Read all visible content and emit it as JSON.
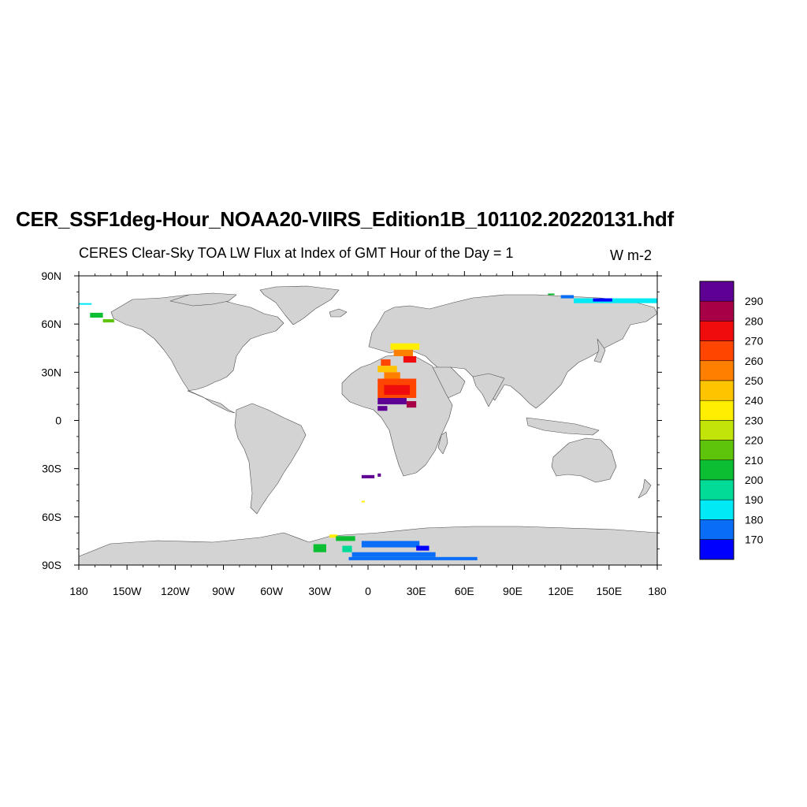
{
  "title": "CER_SSF1deg-Hour_NOAA20-VIIRS_Edition1B_101102.20220131.hdf",
  "subtitle": "CERES Clear-Sky TOA LW Flux at Index of GMT Hour of the Day = 1",
  "units": "W m-2",
  "map": {
    "projection": "cylindrical-equidistant",
    "lon_range": [
      -180,
      180
    ],
    "lat_range": [
      -90,
      90
    ],
    "land_color": "#d3d3d3",
    "ocean_color": "#ffffff",
    "lat_ticks": [
      {
        "value": 90,
        "label": "90N"
      },
      {
        "value": 60,
        "label": "60N"
      },
      {
        "value": 30,
        "label": "30N"
      },
      {
        "value": 0,
        "label": "0"
      },
      {
        "value": -30,
        "label": "30S"
      },
      {
        "value": -60,
        "label": "60S"
      },
      {
        "value": -90,
        "label": "90S"
      }
    ],
    "lon_ticks": [
      {
        "value": -180,
        "label": "180"
      },
      {
        "value": -150,
        "label": "150W"
      },
      {
        "value": -120,
        "label": "120W"
      },
      {
        "value": -90,
        "label": "90W"
      },
      {
        "value": -60,
        "label": "60W"
      },
      {
        "value": -30,
        "label": "30W"
      },
      {
        "value": 0,
        "label": "0"
      },
      {
        "value": 30,
        "label": "30E"
      },
      {
        "value": 60,
        "label": "60E"
      },
      {
        "value": 90,
        "label": "90E"
      },
      {
        "value": 120,
        "label": "120E"
      },
      {
        "value": 150,
        "label": "150E"
      },
      {
        "value": 180,
        "label": "180"
      }
    ]
  },
  "colorbar": {
    "colors": [
      "#0000ff",
      "#0a6df5",
      "#00e9f5",
      "#00dc98",
      "#0cbf32",
      "#5ec40b",
      "#c2e408",
      "#ffee00",
      "#ffc400",
      "#ff8000",
      "#ff4500",
      "#f00c0c",
      "#a70046",
      "#5e0094"
    ],
    "labels": [
      "170",
      "180",
      "190",
      "200",
      "210",
      "220",
      "230",
      "240",
      "250",
      "260",
      "270",
      "280",
      "290"
    ]
  },
  "chart_data": {
    "type": "heatmap",
    "variable": "Clear-Sky TOA LW Flux",
    "units": "W m-2",
    "cell_size_deg": 1,
    "levels": [
      170,
      180,
      190,
      200,
      210,
      220,
      230,
      240,
      250,
      260,
      270,
      280,
      290
    ],
    "patches": [
      {
        "lon": [
          -180,
          -172
        ],
        "lat": [
          72,
          73
        ],
        "value": 185
      },
      {
        "lon": [
          -173,
          -165
        ],
        "lat": [
          64,
          67
        ],
        "value": 205
      },
      {
        "lon": [
          -165,
          -158
        ],
        "lat": [
          61,
          63
        ],
        "value": 215
      },
      {
        "lon": [
          -16,
          -10
        ],
        "lat": [
          -82,
          -78
        ],
        "value": 195
      },
      {
        "lon": [
          -34,
          -26
        ],
        "lat": [
          -82,
          -77
        ],
        "value": 205
      },
      {
        "lon": [
          -24,
          -19
        ],
        "lat": [
          -73,
          -71
        ],
        "value": 235
      },
      {
        "lon": [
          -20,
          -8
        ],
        "lat": [
          -75,
          -72
        ],
        "value": 205
      },
      {
        "lon": [
          -4,
          32
        ],
        "lat": [
          -79,
          -75
        ],
        "value": 175
      },
      {
        "lon": [
          -12,
          68
        ],
        "lat": [
          -87,
          -85
        ],
        "value": 175
      },
      {
        "lon": [
          -10,
          42
        ],
        "lat": [
          -85,
          -82
        ],
        "value": 175
      },
      {
        "lon": [
          30,
          38
        ],
        "lat": [
          -81,
          -78
        ],
        "value": 165
      },
      {
        "lon": [
          120,
          128
        ],
        "lat": [
          76,
          78
        ],
        "value": 175
      },
      {
        "lon": [
          128,
          180
        ],
        "lat": [
          73,
          76
        ],
        "value": 185
      },
      {
        "lon": [
          140,
          152
        ],
        "lat": [
          74,
          76
        ],
        "value": 165
      },
      {
        "lon": [
          112,
          116
        ],
        "lat": [
          78,
          79
        ],
        "value": 205
      },
      {
        "lon": [
          14,
          32
        ],
        "lat": [
          44,
          48
        ],
        "value": 235
      },
      {
        "lon": [
          16,
          28
        ],
        "lat": [
          40,
          44
        ],
        "value": 255
      },
      {
        "lon": [
          22,
          30
        ],
        "lat": [
          36,
          40
        ],
        "value": 275
      },
      {
        "lon": [
          8,
          14
        ],
        "lat": [
          34,
          38
        ],
        "value": 265
      },
      {
        "lon": [
          6,
          18
        ],
        "lat": [
          30,
          34
        ],
        "value": 245
      },
      {
        "lon": [
          10,
          20
        ],
        "lat": [
          26,
          30
        ],
        "value": 255
      },
      {
        "lon": [
          6,
          30
        ],
        "lat": [
          14,
          26
        ],
        "value": 265
      },
      {
        "lon": [
          10,
          26
        ],
        "lat": [
          16,
          22
        ],
        "value": 275
      },
      {
        "lon": [
          6,
          24
        ],
        "lat": [
          10,
          14
        ],
        "value": 295
      },
      {
        "lon": [
          24,
          30
        ],
        "lat": [
          8,
          12
        ],
        "value": 285
      },
      {
        "lon": [
          6,
          12
        ],
        "lat": [
          6,
          9
        ],
        "value": 295
      },
      {
        "lon": [
          -4,
          4
        ],
        "lat": [
          -36,
          -34
        ],
        "value": 295
      },
      {
        "lon": [
          6,
          8
        ],
        "lat": [
          -35,
          -33
        ],
        "value": 295
      },
      {
        "lon": [
          -4,
          -2
        ],
        "lat": [
          -51,
          -50
        ],
        "value": 235
      }
    ]
  }
}
